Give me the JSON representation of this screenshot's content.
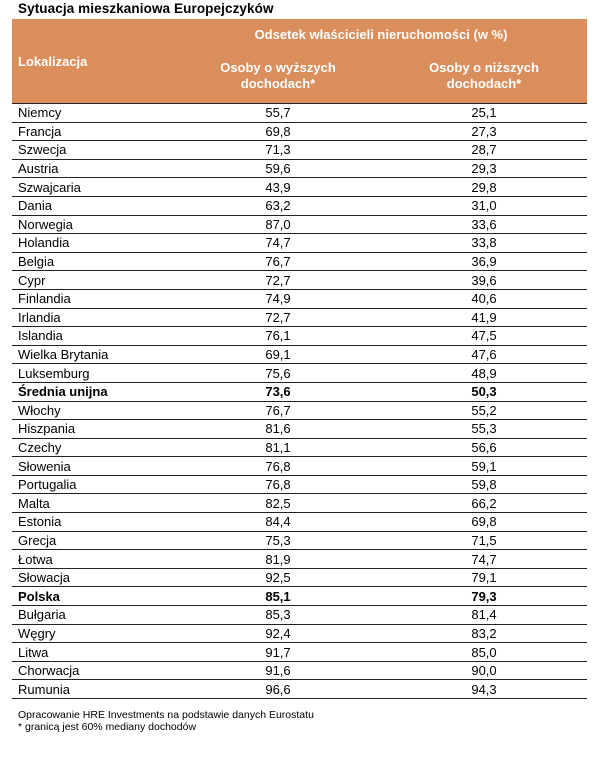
{
  "title": "Sytuacja mieszkaniowa Europejczyków",
  "header": {
    "col_location": "Lokalizacja",
    "group": "Odsetek właścicieli nieruchomości (w %)",
    "higher_line1": "Osoby o wyższych",
    "higher_line2": "dochodach*",
    "lower_line1": "Osoby o niższych",
    "lower_line2": "dochodach*"
  },
  "rows": [
    {
      "name": "Niemcy",
      "higher": "55,7",
      "lower": "25,1",
      "bold": false
    },
    {
      "name": "Francja",
      "higher": "69,8",
      "lower": "27,3",
      "bold": false
    },
    {
      "name": "Szwecja",
      "higher": "71,3",
      "lower": "28,7",
      "bold": false
    },
    {
      "name": "Austria",
      "higher": "59,6",
      "lower": "29,3",
      "bold": false
    },
    {
      "name": "Szwajcaria",
      "higher": "43,9",
      "lower": "29,8",
      "bold": false
    },
    {
      "name": "Dania",
      "higher": "63,2",
      "lower": "31,0",
      "bold": false
    },
    {
      "name": "Norwegia",
      "higher": "87,0",
      "lower": "33,6",
      "bold": false
    },
    {
      "name": "Holandia",
      "higher": "74,7",
      "lower": "33,8",
      "bold": false
    },
    {
      "name": "Belgia",
      "higher": "76,7",
      "lower": "36,9",
      "bold": false
    },
    {
      "name": "Cypr",
      "higher": "72,7",
      "lower": "39,6",
      "bold": false
    },
    {
      "name": "Finlandia",
      "higher": "74,9",
      "lower": "40,6",
      "bold": false
    },
    {
      "name": "Irlandia",
      "higher": "72,7",
      "lower": "41,9",
      "bold": false
    },
    {
      "name": "Islandia",
      "higher": "76,1",
      "lower": "47,5",
      "bold": false
    },
    {
      "name": "Wielka Brytania",
      "higher": "69,1",
      "lower": "47,6",
      "bold": false
    },
    {
      "name": "Luksemburg",
      "higher": "75,6",
      "lower": "48,9",
      "bold": false
    },
    {
      "name": "Średnia unijna",
      "higher": "73,6",
      "lower": "50,3",
      "bold": true
    },
    {
      "name": "Włochy",
      "higher": "76,7",
      "lower": "55,2",
      "bold": false
    },
    {
      "name": "Hiszpania",
      "higher": "81,6",
      "lower": "55,3",
      "bold": false
    },
    {
      "name": "Czechy",
      "higher": "81,1",
      "lower": "56,6",
      "bold": false
    },
    {
      "name": "Słowenia",
      "higher": "76,8",
      "lower": "59,1",
      "bold": false
    },
    {
      "name": "Portugalia",
      "higher": "76,8",
      "lower": "59,8",
      "bold": false
    },
    {
      "name": "Malta",
      "higher": "82,5",
      "lower": "66,2",
      "bold": false
    },
    {
      "name": "Estonia",
      "higher": "84,4",
      "lower": "69,8",
      "bold": false
    },
    {
      "name": "Grecja",
      "higher": "75,3",
      "lower": "71,5",
      "bold": false
    },
    {
      "name": "Łotwa",
      "higher": "81,9",
      "lower": "74,7",
      "bold": false
    },
    {
      "name": "Słowacja",
      "higher": "92,5",
      "lower": "79,1",
      "bold": false
    },
    {
      "name": "Polska",
      "higher": "85,1",
      "lower": "79,3",
      "bold": true
    },
    {
      "name": "Bułgaria",
      "higher": "85,3",
      "lower": "81,4",
      "bold": false
    },
    {
      "name": "Węgry",
      "higher": "92,4",
      "lower": "83,2",
      "bold": false
    },
    {
      "name": "Litwa",
      "higher": "91,7",
      "lower": "85,0",
      "bold": false
    },
    {
      "name": "Chorwacja",
      "higher": "91,6",
      "lower": "90,0",
      "bold": false
    },
    {
      "name": "Rumunia",
      "higher": "96,6",
      "lower": "94,3",
      "bold": false
    }
  ],
  "notes": {
    "source": "Opracowanie HRE Investments na podstawie danych Eurostatu",
    "footnote": "* granicą jest 60% mediany dochodów"
  },
  "colors": {
    "header_bg": "#d98e5c",
    "header_text": "#ffffff"
  }
}
